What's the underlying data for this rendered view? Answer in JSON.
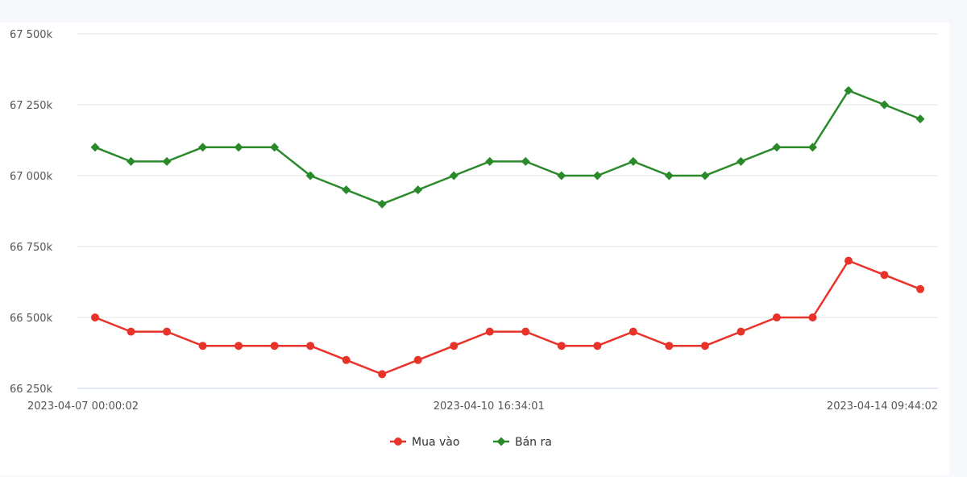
{
  "chart_data": {
    "type": "line",
    "x": [
      "2023-04-07 00:00:02",
      "",
      "",
      "",
      "",
      "",
      "",
      "",
      "",
      "",
      "",
      "2023-04-10 16:34:01",
      "",
      "",
      "",
      "",
      "",
      "",
      "",
      "",
      "",
      "",
      "",
      "2023-04-14 09:44:02"
    ],
    "xtick_labels": [
      "2023-04-07 00:00:02",
      "2023-04-10 16:34:01",
      "2023-04-14 09:44:02"
    ],
    "ytick_labels": [
      "67 500k",
      "67 250k",
      "67 000k",
      "66 750k",
      "66 500k",
      "66 250k"
    ],
    "yticks": [
      67500,
      67250,
      67000,
      66750,
      66500,
      66250
    ],
    "ylim": [
      66250,
      67500
    ],
    "series": [
      {
        "name": "Mua vào",
        "color": "#e8332a",
        "marker": "circle",
        "values": [
          66500,
          66450,
          66450,
          66400,
          66400,
          66400,
          66400,
          66350,
          66300,
          66350,
          66400,
          66450,
          66450,
          66400,
          66400,
          66450,
          66400,
          66400,
          66450,
          66500,
          66500,
          66700,
          66650,
          66600
        ]
      },
      {
        "name": "Bán ra",
        "color": "#2a8a2a",
        "marker": "diamond",
        "values": [
          67100,
          67050,
          67050,
          67100,
          67100,
          67100,
          67000,
          66950,
          66900,
          66950,
          67000,
          67050,
          67050,
          67000,
          67000,
          67050,
          67000,
          67000,
          67050,
          67100,
          67100,
          67300,
          67250,
          67200
        ]
      }
    ],
    "grid": true,
    "legend": "bottom-center"
  }
}
